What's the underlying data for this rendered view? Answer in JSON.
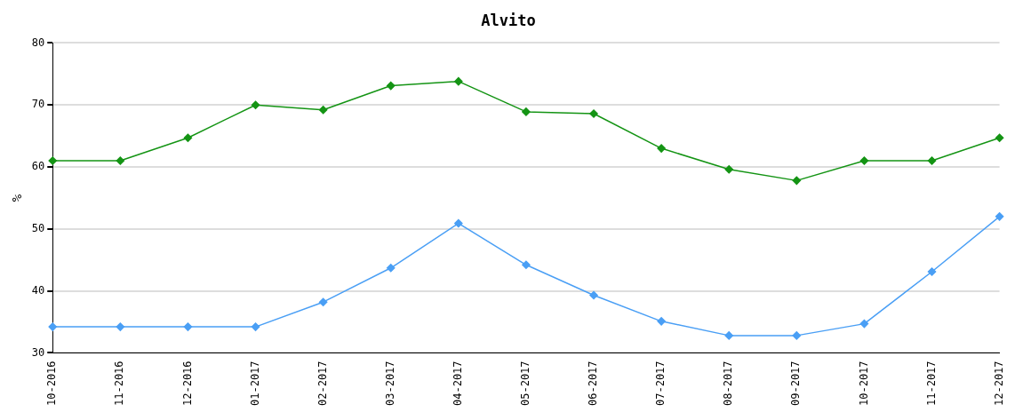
{
  "chart_data": {
    "type": "line",
    "title": "Alvito",
    "ylabel": "%",
    "categories": [
      "10-2016",
      "11-2016",
      "12-2016",
      "01-2017",
      "02-2017",
      "03-2017",
      "04-2017",
      "05-2017",
      "06-2017",
      "07-2017",
      "08-2017",
      "09-2017",
      "10-2017",
      "11-2017",
      "12-2017"
    ],
    "series": [
      {
        "color": "#149414",
        "values": [
          61,
          61,
          64.7,
          70,
          69.2,
          73.1,
          73.8,
          68.9,
          68.6,
          63,
          59.6,
          57.8,
          61,
          61,
          64.7
        ]
      },
      {
        "color": "#4a9ff5",
        "values": [
          34.2,
          34.2,
          34.2,
          34.2,
          38.2,
          43.7,
          50.9,
          44.2,
          39.3,
          35.1,
          32.8,
          32.8,
          34.7,
          43.1,
          52
        ]
      }
    ],
    "ylim": [
      30,
      80
    ],
    "yticks": [
      30,
      40,
      50,
      60,
      70,
      80
    ],
    "grid": "y",
    "legend": false,
    "marker": "diamond",
    "line_style": "solid"
  }
}
